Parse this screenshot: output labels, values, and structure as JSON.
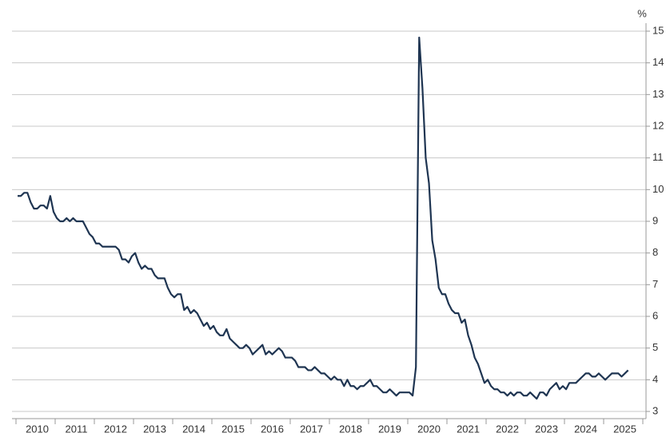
{
  "chart_data": {
    "type": "line",
    "y_unit": "%",
    "categories": [
      null,
      null,
      null,
      null,
      null,
      null,
      "2010",
      null,
      null,
      null,
      null,
      null,
      null,
      null,
      null,
      null,
      null,
      null,
      "2011",
      null,
      null,
      null,
      null,
      null,
      null,
      null,
      null,
      null,
      null,
      null,
      "2012",
      null,
      null,
      null,
      null,
      null,
      null,
      null,
      null,
      null,
      null,
      null,
      "2013",
      null,
      null,
      null,
      null,
      null,
      null,
      null,
      null,
      null,
      null,
      null,
      "2014",
      null,
      null,
      null,
      null,
      null,
      null,
      null,
      null,
      null,
      null,
      null,
      "2015",
      null,
      null,
      null,
      null,
      null,
      null,
      null,
      null,
      null,
      null,
      null,
      "2016",
      null,
      null,
      null,
      null,
      null,
      null,
      null,
      null,
      null,
      null,
      null,
      "2017",
      null,
      null,
      null,
      null,
      null,
      null,
      null,
      null,
      null,
      null,
      null,
      "2018",
      null,
      null,
      null,
      null,
      null,
      null,
      null,
      null,
      null,
      null,
      null,
      "2019",
      null,
      null,
      null,
      null,
      null,
      null,
      null,
      null,
      null,
      null,
      null,
      "2020",
      null,
      null,
      null,
      null,
      null,
      null,
      null,
      null,
      null,
      null,
      null,
      "2021",
      null,
      null,
      null,
      null,
      null,
      null,
      null,
      null,
      null,
      null,
      null,
      "2022",
      null,
      null,
      null,
      null,
      null,
      null,
      null,
      null,
      null,
      null,
      null,
      "2023",
      null,
      null,
      null,
      null,
      null,
      null,
      null,
      null,
      null,
      null,
      null,
      "2024",
      null,
      null,
      null,
      null,
      null,
      null,
      null,
      null,
      null,
      null,
      null,
      "2025",
      null
    ],
    "color": "#1f3552",
    "values": [
      9.8,
      9.8,
      9.9,
      9.9,
      9.6,
      9.4,
      9.4,
      9.5,
      9.5,
      9.4,
      9.8,
      9.3,
      9.1,
      9.0,
      9.0,
      9.1,
      9.0,
      9.1,
      9.0,
      9.0,
      9.0,
      8.8,
      8.6,
      8.5,
      8.3,
      8.3,
      8.2,
      8.2,
      8.2,
      8.2,
      8.2,
      8.1,
      7.8,
      7.8,
      7.7,
      7.9,
      8.0,
      7.7,
      7.5,
      7.6,
      7.5,
      7.5,
      7.3,
      7.2,
      7.2,
      7.2,
      6.9,
      6.7,
      6.6,
      6.7,
      6.7,
      6.2,
      6.3,
      6.1,
      6.2,
      6.1,
      5.9,
      5.7,
      5.8,
      5.6,
      5.7,
      5.5,
      5.4,
      5.4,
      5.6,
      5.3,
      5.2,
      5.1,
      5.0,
      5.0,
      5.1,
      5.0,
      4.8,
      4.9,
      5.0,
      5.1,
      4.8,
      4.9,
      4.8,
      4.9,
      5.0,
      4.9,
      4.7,
      4.7,
      4.7,
      4.6,
      4.4,
      4.4,
      4.4,
      4.3,
      4.3,
      4.4,
      4.3,
      4.2,
      4.2,
      4.1,
      4.0,
      4.1,
      4.0,
      4.0,
      3.8,
      4.0,
      3.8,
      3.8,
      3.7,
      3.8,
      3.8,
      3.9,
      4.0,
      3.8,
      3.8,
      3.7,
      3.6,
      3.6,
      3.7,
      3.6,
      3.5,
      3.6,
      3.6,
      3.6,
      3.6,
      3.5,
      4.4,
      14.8,
      13.2,
      11.0,
      10.2,
      8.4,
      7.8,
      6.9,
      6.7,
      6.7,
      6.4,
      6.2,
      6.1,
      6.1,
      5.8,
      5.9,
      5.4,
      5.1,
      4.7,
      4.5,
      4.2,
      3.9,
      4.0,
      3.8,
      3.7,
      3.7,
      3.6,
      3.6,
      3.5,
      3.6,
      3.5,
      3.6,
      3.6,
      3.5,
      3.5,
      3.6,
      3.5,
      3.4,
      3.6,
      3.6,
      3.5,
      3.7,
      3.8,
      3.9,
      3.7,
      3.8,
      3.7,
      3.9,
      3.9,
      3.9,
      4.0,
      4.1,
      4.2,
      4.2,
      4.1,
      4.1,
      4.2,
      4.1,
      4.0,
      4.1,
      4.2,
      4.2,
      4.2,
      4.1,
      4.2,
      4.3
    ],
    "ylim": [
      3,
      15
    ],
    "yticks": [
      3,
      4,
      5,
      6,
      7,
      8,
      9,
      10,
      11,
      12,
      13,
      14,
      15
    ],
    "grid": true
  }
}
